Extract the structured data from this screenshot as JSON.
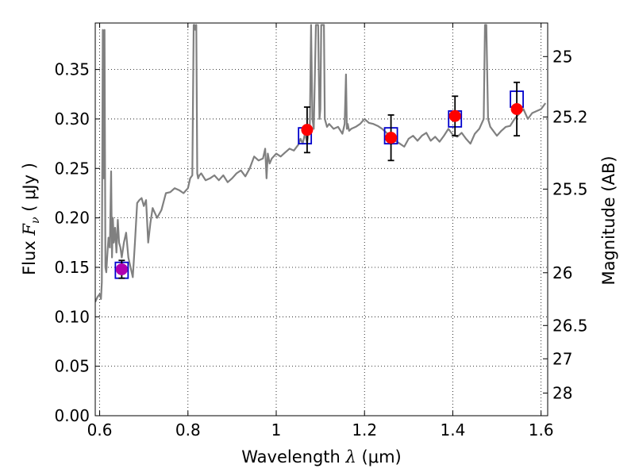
{
  "chart_data": {
    "type": "scatter",
    "xlabel_prefix": "Wavelength",
    "xlabel_symbol": "λ",
    "xlabel_unit": "(μm)",
    "ylabel_prefix": "Flux",
    "ylabel_symbol": "F",
    "ylabel_sub": "ν",
    "ylabel_unit": "( μJy )",
    "y2label": "Magnitude (AB)",
    "xlim": [
      0.59,
      1.615
    ],
    "ylim": [
      0.0,
      0.397
    ],
    "grid": true,
    "x_ticks": [
      0.6,
      0.8,
      1.0,
      1.2,
      1.4,
      1.6
    ],
    "x_tick_labels": [
      "0.6",
      "0.8",
      "1",
      "1.2",
      "1.4",
      "1.6"
    ],
    "y_ticks": [
      0.0,
      0.05,
      0.1,
      0.15,
      0.2,
      0.25,
      0.3,
      0.35
    ],
    "y_tick_labels": [
      "0.00",
      "0.05",
      "0.10",
      "0.15",
      "0.20",
      "0.25",
      "0.30",
      "0.35"
    ],
    "y2_ticks": [
      25,
      25.2,
      25.5,
      26,
      26.5,
      27,
      28
    ],
    "y2_tick_labels": [
      "25",
      "25.2",
      "25.5",
      "26",
      "26.5",
      "27",
      "28"
    ],
    "series": [
      {
        "style": "line",
        "color": "#808080",
        "x": [
          0.59,
          0.595,
          0.6,
          0.603,
          0.605,
          0.607,
          0.609,
          0.611,
          0.613,
          0.615,
          0.617,
          0.62,
          0.623,
          0.626,
          0.628,
          0.63,
          0.632,
          0.635,
          0.638,
          0.641,
          0.644,
          0.647,
          0.65,
          0.655,
          0.66,
          0.665,
          0.67,
          0.675,
          0.68,
          0.685,
          0.69,
          0.695,
          0.7,
          0.705,
          0.71,
          0.715,
          0.72,
          0.73,
          0.74,
          0.75,
          0.76,
          0.77,
          0.78,
          0.79,
          0.8,
          0.805,
          0.81,
          0.813,
          0.815,
          0.817,
          0.819,
          0.821,
          0.823,
          0.826,
          0.83,
          0.84,
          0.85,
          0.86,
          0.87,
          0.88,
          0.89,
          0.9,
          0.91,
          0.92,
          0.93,
          0.94,
          0.95,
          0.96,
          0.97,
          0.975,
          0.978,
          0.981,
          0.985,
          0.99,
          1.0,
          1.01,
          1.02,
          1.03,
          1.04,
          1.05,
          1.055,
          1.06,
          1.065,
          1.07,
          1.073,
          1.076,
          1.079,
          1.082,
          1.085,
          1.09,
          1.095,
          1.098,
          1.1,
          1.102,
          1.105,
          1.108,
          1.11,
          1.115,
          1.12,
          1.13,
          1.14,
          1.15,
          1.155,
          1.158,
          1.16,
          1.162,
          1.165,
          1.17,
          1.18,
          1.19,
          1.2,
          1.21,
          1.22,
          1.23,
          1.24,
          1.25,
          1.26,
          1.27,
          1.28,
          1.29,
          1.3,
          1.31,
          1.32,
          1.33,
          1.34,
          1.35,
          1.36,
          1.37,
          1.38,
          1.39,
          1.4,
          1.41,
          1.42,
          1.43,
          1.44,
          1.45,
          1.46,
          1.465,
          1.47,
          1.473,
          1.476,
          1.48,
          1.485,
          1.49,
          1.5,
          1.51,
          1.52,
          1.53,
          1.54,
          1.55,
          1.56,
          1.57,
          1.58,
          1.59,
          1.6,
          1.61
        ],
        "y": [
          0.115,
          0.12,
          0.123,
          0.118,
          0.135,
          0.39,
          0.24,
          0.39,
          0.15,
          0.145,
          0.16,
          0.18,
          0.17,
          0.247,
          0.16,
          0.2,
          0.175,
          0.19,
          0.165,
          0.198,
          0.175,
          0.17,
          0.16,
          0.175,
          0.185,
          0.16,
          0.15,
          0.14,
          0.175,
          0.215,
          0.218,
          0.22,
          0.212,
          0.218,
          0.175,
          0.195,
          0.21,
          0.2,
          0.208,
          0.225,
          0.226,
          0.23,
          0.228,
          0.225,
          0.23,
          0.24,
          0.243,
          0.395,
          0.395,
          0.39,
          0.395,
          0.245,
          0.24,
          0.243,
          0.245,
          0.238,
          0.24,
          0.243,
          0.238,
          0.243,
          0.236,
          0.24,
          0.245,
          0.248,
          0.242,
          0.25,
          0.262,
          0.258,
          0.26,
          0.27,
          0.24,
          0.265,
          0.255,
          0.26,
          0.265,
          0.262,
          0.266,
          0.27,
          0.268,
          0.274,
          0.28,
          0.275,
          0.285,
          0.276,
          0.285,
          0.29,
          0.395,
          0.3,
          0.29,
          0.395,
          0.395,
          0.3,
          0.31,
          0.395,
          0.395,
          0.395,
          0.3,
          0.292,
          0.295,
          0.29,
          0.292,
          0.285,
          0.295,
          0.345,
          0.29,
          0.295,
          0.288,
          0.29,
          0.292,
          0.295,
          0.3,
          0.296,
          0.295,
          0.293,
          0.29,
          0.286,
          0.282,
          0.278,
          0.275,
          0.272,
          0.28,
          0.283,
          0.278,
          0.283,
          0.286,
          0.278,
          0.282,
          0.277,
          0.283,
          0.29,
          0.284,
          0.282,
          0.286,
          0.28,
          0.275,
          0.285,
          0.29,
          0.295,
          0.3,
          0.395,
          0.395,
          0.3,
          0.292,
          0.289,
          0.283,
          0.288,
          0.292,
          0.293,
          0.3,
          0.305,
          0.31,
          0.3,
          0.306,
          0.308,
          0.31,
          0.316
        ]
      },
      {
        "style": "open_squares",
        "color": "#0000cc",
        "x": [
          0.65,
          1.065,
          1.26,
          1.405,
          1.545
        ],
        "y": [
          0.147,
          0.283,
          0.283,
          0.3,
          0.32
        ]
      },
      {
        "style": "markers_errorbars",
        "color": "#ff0000",
        "x": [
          0.65,
          1.07,
          1.26,
          1.405,
          1.545
        ],
        "y": [
          0.148,
          0.289,
          0.281,
          0.303,
          0.31
        ],
        "yerr": [
          0.009,
          0.023,
          0.023,
          0.02,
          0.027
        ],
        "point_colors": [
          "#b000b0",
          "#ff0000",
          "#ff0000",
          "#ff0000",
          "#ff0000"
        ]
      }
    ]
  }
}
